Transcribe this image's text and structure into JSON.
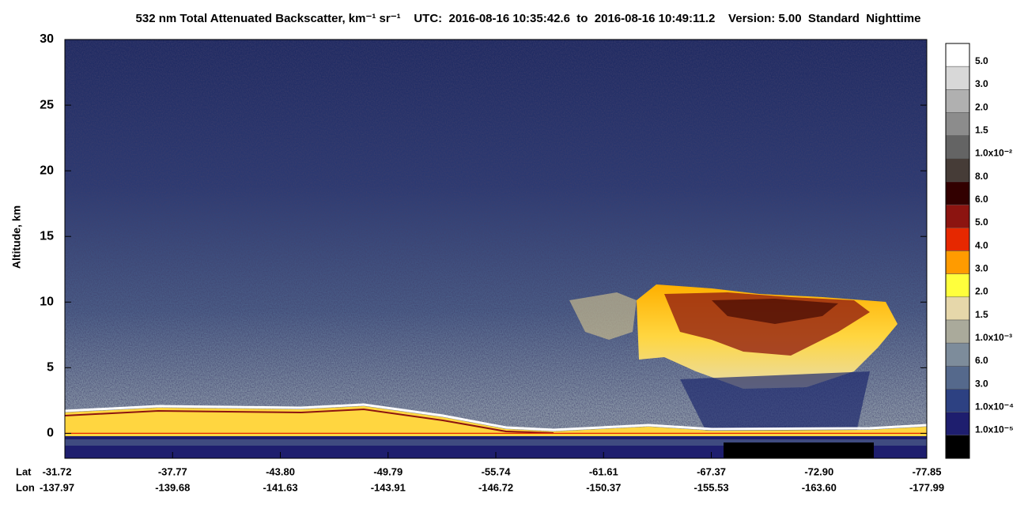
{
  "chart_data": {
    "type": "heatmap",
    "title": "532 nm Total Attenuated Backscatter, km⁻¹ sr⁻¹    UTC:  2016-08-16 10:35:42.6  to  2016-08-16 10:49:11.2    Version: 5.00  Standard  Nighttime",
    "y_label": "Altitude, km",
    "ylim": [
      -1.9,
      30
    ],
    "yticks": [
      0,
      5,
      10,
      15,
      20,
      25,
      30
    ],
    "x_row_labels": [
      "Lat",
      "Lon"
    ],
    "lat_ticks": [
      "-31.72",
      "-37.77",
      "-43.80",
      "-49.79",
      "-55.74",
      "-61.61",
      "-67.37",
      "-72.90",
      "-77.85"
    ],
    "lon_ticks": [
      "-137.97",
      "-139.68",
      "-141.63",
      "-143.91",
      "-146.72",
      "-150.37",
      "-155.53",
      "-163.60",
      "-177.99"
    ],
    "colorbar": {
      "colors": [
        "#ffffff",
        "#d8d8d8",
        "#b0b0b0",
        "#8c8c8c",
        "#646464",
        "#463c37",
        "#320000",
        "#8c1410",
        "#e62800",
        "#ff9b00",
        "#ffff3c",
        "#e6d7aa",
        "#aaaa9b",
        "#7d8c9b",
        "#55698c",
        "#2d4182",
        "#1e1e6e",
        "#000000"
      ],
      "labels": [
        "5.0",
        "3.0",
        "2.0",
        "1.5",
        "1.0x10⁻²",
        "8.0",
        "6.0",
        "5.0",
        "4.0",
        "3.0",
        "2.0",
        "1.5",
        "1.0x10⁻³",
        "6.0",
        "3.0",
        "1.0x10⁻⁴",
        "1.0x10⁻⁵",
        null
      ]
    }
  }
}
